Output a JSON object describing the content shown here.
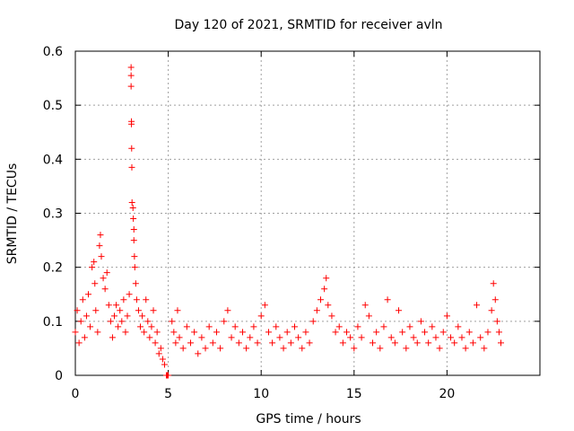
{
  "chart_data": {
    "type": "scatter",
    "title": "Day 120 of 2021, SRMTID for receiver avln",
    "xlabel": "GPS time / hours",
    "ylabel": "SRMTID / TECUs",
    "xlim": [
      0,
      25
    ],
    "ylim": [
      0,
      0.6
    ],
    "xticks": [
      0,
      5,
      10,
      15,
      20
    ],
    "yticks": [
      0,
      0.1,
      0.2,
      0.3,
      0.4,
      0.5,
      0.6
    ],
    "xtick_labels": [
      "0",
      "5",
      "10",
      "15",
      "20"
    ],
    "ytick_labels": [
      "0",
      "0.1",
      "0.2",
      "0.3",
      "0.4",
      "0.5",
      "0.6"
    ],
    "grid": true,
    "marker": "+",
    "series": [
      {
        "name": "SRMTID",
        "color": "#ff0000",
        "points": [
          [
            0.0,
            0.08
          ],
          [
            0.1,
            0.12
          ],
          [
            0.2,
            0.06
          ],
          [
            0.3,
            0.1
          ],
          [
            0.4,
            0.14
          ],
          [
            0.5,
            0.07
          ],
          [
            0.6,
            0.11
          ],
          [
            0.7,
            0.15
          ],
          [
            0.8,
            0.09
          ],
          [
            0.9,
            0.2
          ],
          [
            1.0,
            0.21
          ],
          [
            1.05,
            0.17
          ],
          [
            1.1,
            0.12
          ],
          [
            1.2,
            0.08
          ],
          [
            1.3,
            0.24
          ],
          [
            1.35,
            0.26
          ],
          [
            1.4,
            0.22
          ],
          [
            1.5,
            0.18
          ],
          [
            1.6,
            0.16
          ],
          [
            1.7,
            0.19
          ],
          [
            1.8,
            0.13
          ],
          [
            1.9,
            0.1
          ],
          [
            2.0,
            0.07
          ],
          [
            2.1,
            0.11
          ],
          [
            2.2,
            0.13
          ],
          [
            2.3,
            0.09
          ],
          [
            2.4,
            0.12
          ],
          [
            2.5,
            0.1
          ],
          [
            2.6,
            0.14
          ],
          [
            2.7,
            0.08
          ],
          [
            2.8,
            0.11
          ],
          [
            2.9,
            0.15
          ],
          [
            3.0,
            0.57
          ],
          [
            3.0,
            0.555
          ],
          [
            3.0,
            0.535
          ],
          [
            3.02,
            0.47
          ],
          [
            3.02,
            0.465
          ],
          [
            3.03,
            0.42
          ],
          [
            3.04,
            0.385
          ],
          [
            3.05,
            0.32
          ],
          [
            3.1,
            0.31
          ],
          [
            3.12,
            0.29
          ],
          [
            3.15,
            0.27
          ],
          [
            3.15,
            0.25
          ],
          [
            3.18,
            0.22
          ],
          [
            3.2,
            0.2
          ],
          [
            3.25,
            0.17
          ],
          [
            3.3,
            0.14
          ],
          [
            3.4,
            0.12
          ],
          [
            3.5,
            0.09
          ],
          [
            3.6,
            0.11
          ],
          [
            3.7,
            0.08
          ],
          [
            3.8,
            0.14
          ],
          [
            3.9,
            0.1
          ],
          [
            4.0,
            0.07
          ],
          [
            4.1,
            0.09
          ],
          [
            4.2,
            0.12
          ],
          [
            4.3,
            0.06
          ],
          [
            4.4,
            0.08
          ],
          [
            4.5,
            0.04
          ],
          [
            4.6,
            0.05
          ],
          [
            4.7,
            0.03
          ],
          [
            4.8,
            0.02
          ],
          [
            4.9,
            0.0
          ],
          [
            4.95,
            0.0
          ],
          [
            5.0,
            0.0
          ],
          [
            5.2,
            0.1
          ],
          [
            5.3,
            0.08
          ],
          [
            5.4,
            0.06
          ],
          [
            5.5,
            0.12
          ],
          [
            5.6,
            0.07
          ],
          [
            5.8,
            0.05
          ],
          [
            6.0,
            0.09
          ],
          [
            6.2,
            0.06
          ],
          [
            6.4,
            0.08
          ],
          [
            6.6,
            0.04
          ],
          [
            6.8,
            0.07
          ],
          [
            7.0,
            0.05
          ],
          [
            7.2,
            0.09
          ],
          [
            7.4,
            0.06
          ],
          [
            7.6,
            0.08
          ],
          [
            7.8,
            0.05
          ],
          [
            8.0,
            0.1
          ],
          [
            8.2,
            0.12
          ],
          [
            8.4,
            0.07
          ],
          [
            8.6,
            0.09
          ],
          [
            8.8,
            0.06
          ],
          [
            9.0,
            0.08
          ],
          [
            9.2,
            0.05
          ],
          [
            9.4,
            0.07
          ],
          [
            9.6,
            0.09
          ],
          [
            9.8,
            0.06
          ],
          [
            10.0,
            0.11
          ],
          [
            10.2,
            0.13
          ],
          [
            10.4,
            0.08
          ],
          [
            10.6,
            0.06
          ],
          [
            10.8,
            0.09
          ],
          [
            11.0,
            0.07
          ],
          [
            11.2,
            0.05
          ],
          [
            11.4,
            0.08
          ],
          [
            11.6,
            0.06
          ],
          [
            11.8,
            0.09
          ],
          [
            12.0,
            0.07
          ],
          [
            12.2,
            0.05
          ],
          [
            12.4,
            0.08
          ],
          [
            12.6,
            0.06
          ],
          [
            12.8,
            0.1
          ],
          [
            13.0,
            0.12
          ],
          [
            13.2,
            0.14
          ],
          [
            13.4,
            0.16
          ],
          [
            13.5,
            0.18
          ],
          [
            13.6,
            0.13
          ],
          [
            13.8,
            0.11
          ],
          [
            14.0,
            0.08
          ],
          [
            14.2,
            0.09
          ],
          [
            14.4,
            0.06
          ],
          [
            14.6,
            0.08
          ],
          [
            14.8,
            0.07
          ],
          [
            15.0,
            0.05
          ],
          [
            15.2,
            0.09
          ],
          [
            15.4,
            0.07
          ],
          [
            15.6,
            0.13
          ],
          [
            15.8,
            0.11
          ],
          [
            16.0,
            0.06
          ],
          [
            16.2,
            0.08
          ],
          [
            16.4,
            0.05
          ],
          [
            16.6,
            0.09
          ],
          [
            16.8,
            0.14
          ],
          [
            17.0,
            0.07
          ],
          [
            17.2,
            0.06
          ],
          [
            17.4,
            0.12
          ],
          [
            17.6,
            0.08
          ],
          [
            17.8,
            0.05
          ],
          [
            18.0,
            0.09
          ],
          [
            18.2,
            0.07
          ],
          [
            18.4,
            0.06
          ],
          [
            18.6,
            0.1
          ],
          [
            18.8,
            0.08
          ],
          [
            19.0,
            0.06
          ],
          [
            19.2,
            0.09
          ],
          [
            19.4,
            0.07
          ],
          [
            19.6,
            0.05
          ],
          [
            19.8,
            0.08
          ],
          [
            20.0,
            0.11
          ],
          [
            20.2,
            0.07
          ],
          [
            20.4,
            0.06
          ],
          [
            20.6,
            0.09
          ],
          [
            20.8,
            0.07
          ],
          [
            21.0,
            0.05
          ],
          [
            21.2,
            0.08
          ],
          [
            21.4,
            0.06
          ],
          [
            21.6,
            0.13
          ],
          [
            21.8,
            0.07
          ],
          [
            22.0,
            0.05
          ],
          [
            22.2,
            0.08
          ],
          [
            22.4,
            0.12
          ],
          [
            22.5,
            0.17
          ],
          [
            22.6,
            0.14
          ],
          [
            22.7,
            0.1
          ],
          [
            22.8,
            0.08
          ],
          [
            22.9,
            0.06
          ]
        ]
      }
    ]
  }
}
